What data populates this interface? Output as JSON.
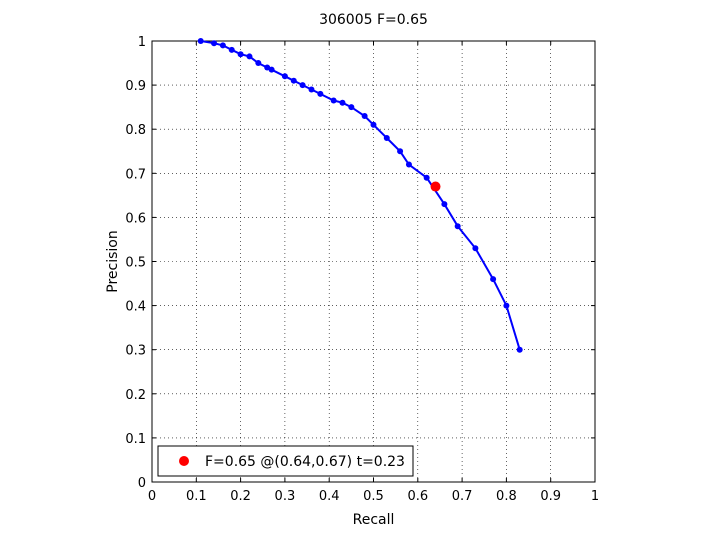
{
  "chart_data": {
    "type": "line",
    "title": "306005 F=0.65",
    "xlabel": "Recall",
    "ylabel": "Precision",
    "xlim": [
      0,
      1
    ],
    "ylim": [
      0,
      1
    ],
    "grid": true,
    "x_ticks": [
      "0",
      "0.1",
      "0.2",
      "0.3",
      "0.4",
      "0.5",
      "0.6",
      "0.7",
      "0.8",
      "0.9",
      "1"
    ],
    "y_ticks": [
      "0",
      "0.1",
      "0.2",
      "0.3",
      "0.4",
      "0.5",
      "0.6",
      "0.7",
      "0.8",
      "0.9",
      "1"
    ],
    "colors": {
      "series": "#0000ff",
      "marker": "#ff0000"
    },
    "series": [
      {
        "x": [
          0.11,
          0.14,
          0.16,
          0.18,
          0.2,
          0.22,
          0.24,
          0.26,
          0.27,
          0.3,
          0.32,
          0.34,
          0.36,
          0.38,
          0.41,
          0.43,
          0.45,
          0.48,
          0.5,
          0.53,
          0.56,
          0.58,
          0.62,
          0.66,
          0.69,
          0.73,
          0.77,
          0.8,
          0.83
        ],
        "y": [
          1.0,
          0.995,
          0.99,
          0.98,
          0.97,
          0.965,
          0.95,
          0.94,
          0.935,
          0.92,
          0.91,
          0.9,
          0.89,
          0.88,
          0.865,
          0.86,
          0.85,
          0.83,
          0.81,
          0.78,
          0.75,
          0.72,
          0.69,
          0.63,
          0.58,
          0.53,
          0.46,
          0.4,
          0.3
        ]
      }
    ],
    "highlight": {
      "x": 0.64,
      "y": 0.67
    },
    "legend": {
      "position": "bottom-left",
      "entries": [
        "F=0.65 @(0.64,0.67) t=0.23"
      ]
    }
  }
}
